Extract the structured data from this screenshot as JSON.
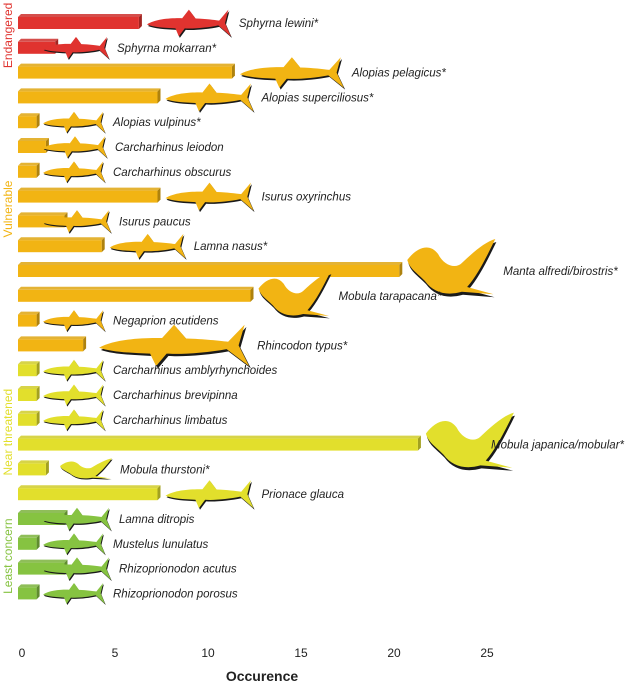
{
  "chart_data": {
    "type": "bar",
    "orientation": "horizontal",
    "xlabel": "Occurence",
    "xlim": [
      0,
      27
    ],
    "xticks": [
      "0",
      "5",
      "10",
      "15",
      "20",
      "25"
    ],
    "xtick_values": [
      0,
      5,
      10,
      15,
      20,
      25
    ],
    "grid": false,
    "legend": "none",
    "colors": {
      "Endangered": "#e0332f",
      "Vulnerable": "#f2b413",
      "Near threatened": "#e2df2c",
      "Least concern": "#86c341"
    },
    "groups": [
      {
        "name": "Endangered",
        "categories": [
          {
            "name": "Sphyrna lewini*",
            "value": 6.5
          },
          {
            "name": "Sphyrna mokarran*",
            "value": 2
          }
        ]
      },
      {
        "name": "Vulnerable",
        "categories": [
          {
            "name": "Alopias pelagicus*",
            "value": 11.5
          },
          {
            "name": "Alopias superciliosus*",
            "value": 7.5
          },
          {
            "name": "Alopias vulpinus*",
            "value": 1
          },
          {
            "name": "Carcharhinus leiodon",
            "value": 1.5
          },
          {
            "name": "Carcharhinus obscurus",
            "value": 1
          },
          {
            "name": "Isurus oxyrinchus",
            "value": 7.5
          },
          {
            "name": "Isurus paucus",
            "value": 2.5
          },
          {
            "name": "Lamna nasus*",
            "value": 4.5
          },
          {
            "name": "Manta alfredi/birostris*",
            "value": 20.5
          },
          {
            "name": "Mobula tarapacana*",
            "value": 12.5
          },
          {
            "name": "Negaprion acutidens",
            "value": 1
          },
          {
            "name": "Rhincodon typus*",
            "value": 3.5
          }
        ]
      },
      {
        "name": "Near threatened",
        "categories": [
          {
            "name": "Carcharhinus amblyrhynchoides",
            "value": 1
          },
          {
            "name": "Carcharhinus brevipinna",
            "value": 1
          },
          {
            "name": "Carcharhinus limbatus",
            "value": 1
          },
          {
            "name": "Mobula japanica/mobular*",
            "value": 21.5
          },
          {
            "name": "Mobula thurstoni*",
            "value": 1.5
          },
          {
            "name": "Prionace glauca",
            "value": 7.5
          }
        ]
      },
      {
        "name": "Least concern",
        "categories": [
          {
            "name": "Lamna ditropis",
            "value": 2.5
          },
          {
            "name": "Mustelus lunulatus",
            "value": 1
          },
          {
            "name": "Rhizoprionodon acutus",
            "value": 2.5
          },
          {
            "name": "Rhizoprionodon porosus",
            "value": 1
          }
        ]
      }
    ]
  }
}
